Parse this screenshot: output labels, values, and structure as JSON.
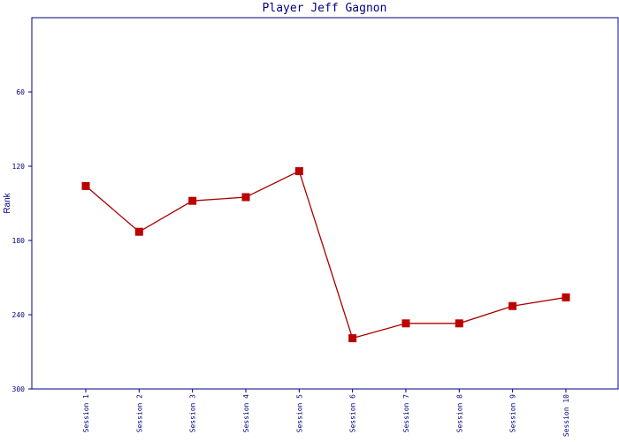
{
  "chart_data": {
    "type": "line",
    "title": "Player Jeff Gagnon",
    "xlabel": "",
    "ylabel": "Rank",
    "categories": [
      "Session 1",
      "Session 2",
      "Session 3",
      "Session 4",
      "Session 5",
      "Session 6",
      "Session 7",
      "Session 8",
      "Session 9",
      "Session 10"
    ],
    "series": [
      {
        "values": [
          136,
          173,
          148,
          145,
          124,
          259,
          247,
          247,
          233,
          226
        ]
      }
    ],
    "ylim": [
      300,
      0
    ],
    "y_axis_inverted": true,
    "yticks": [
      60,
      120,
      180,
      240,
      300
    ],
    "grid": false,
    "colors": {
      "line": "#aa0000",
      "marker": "#bb0000",
      "axis": "#000080",
      "text": "#000080"
    }
  }
}
